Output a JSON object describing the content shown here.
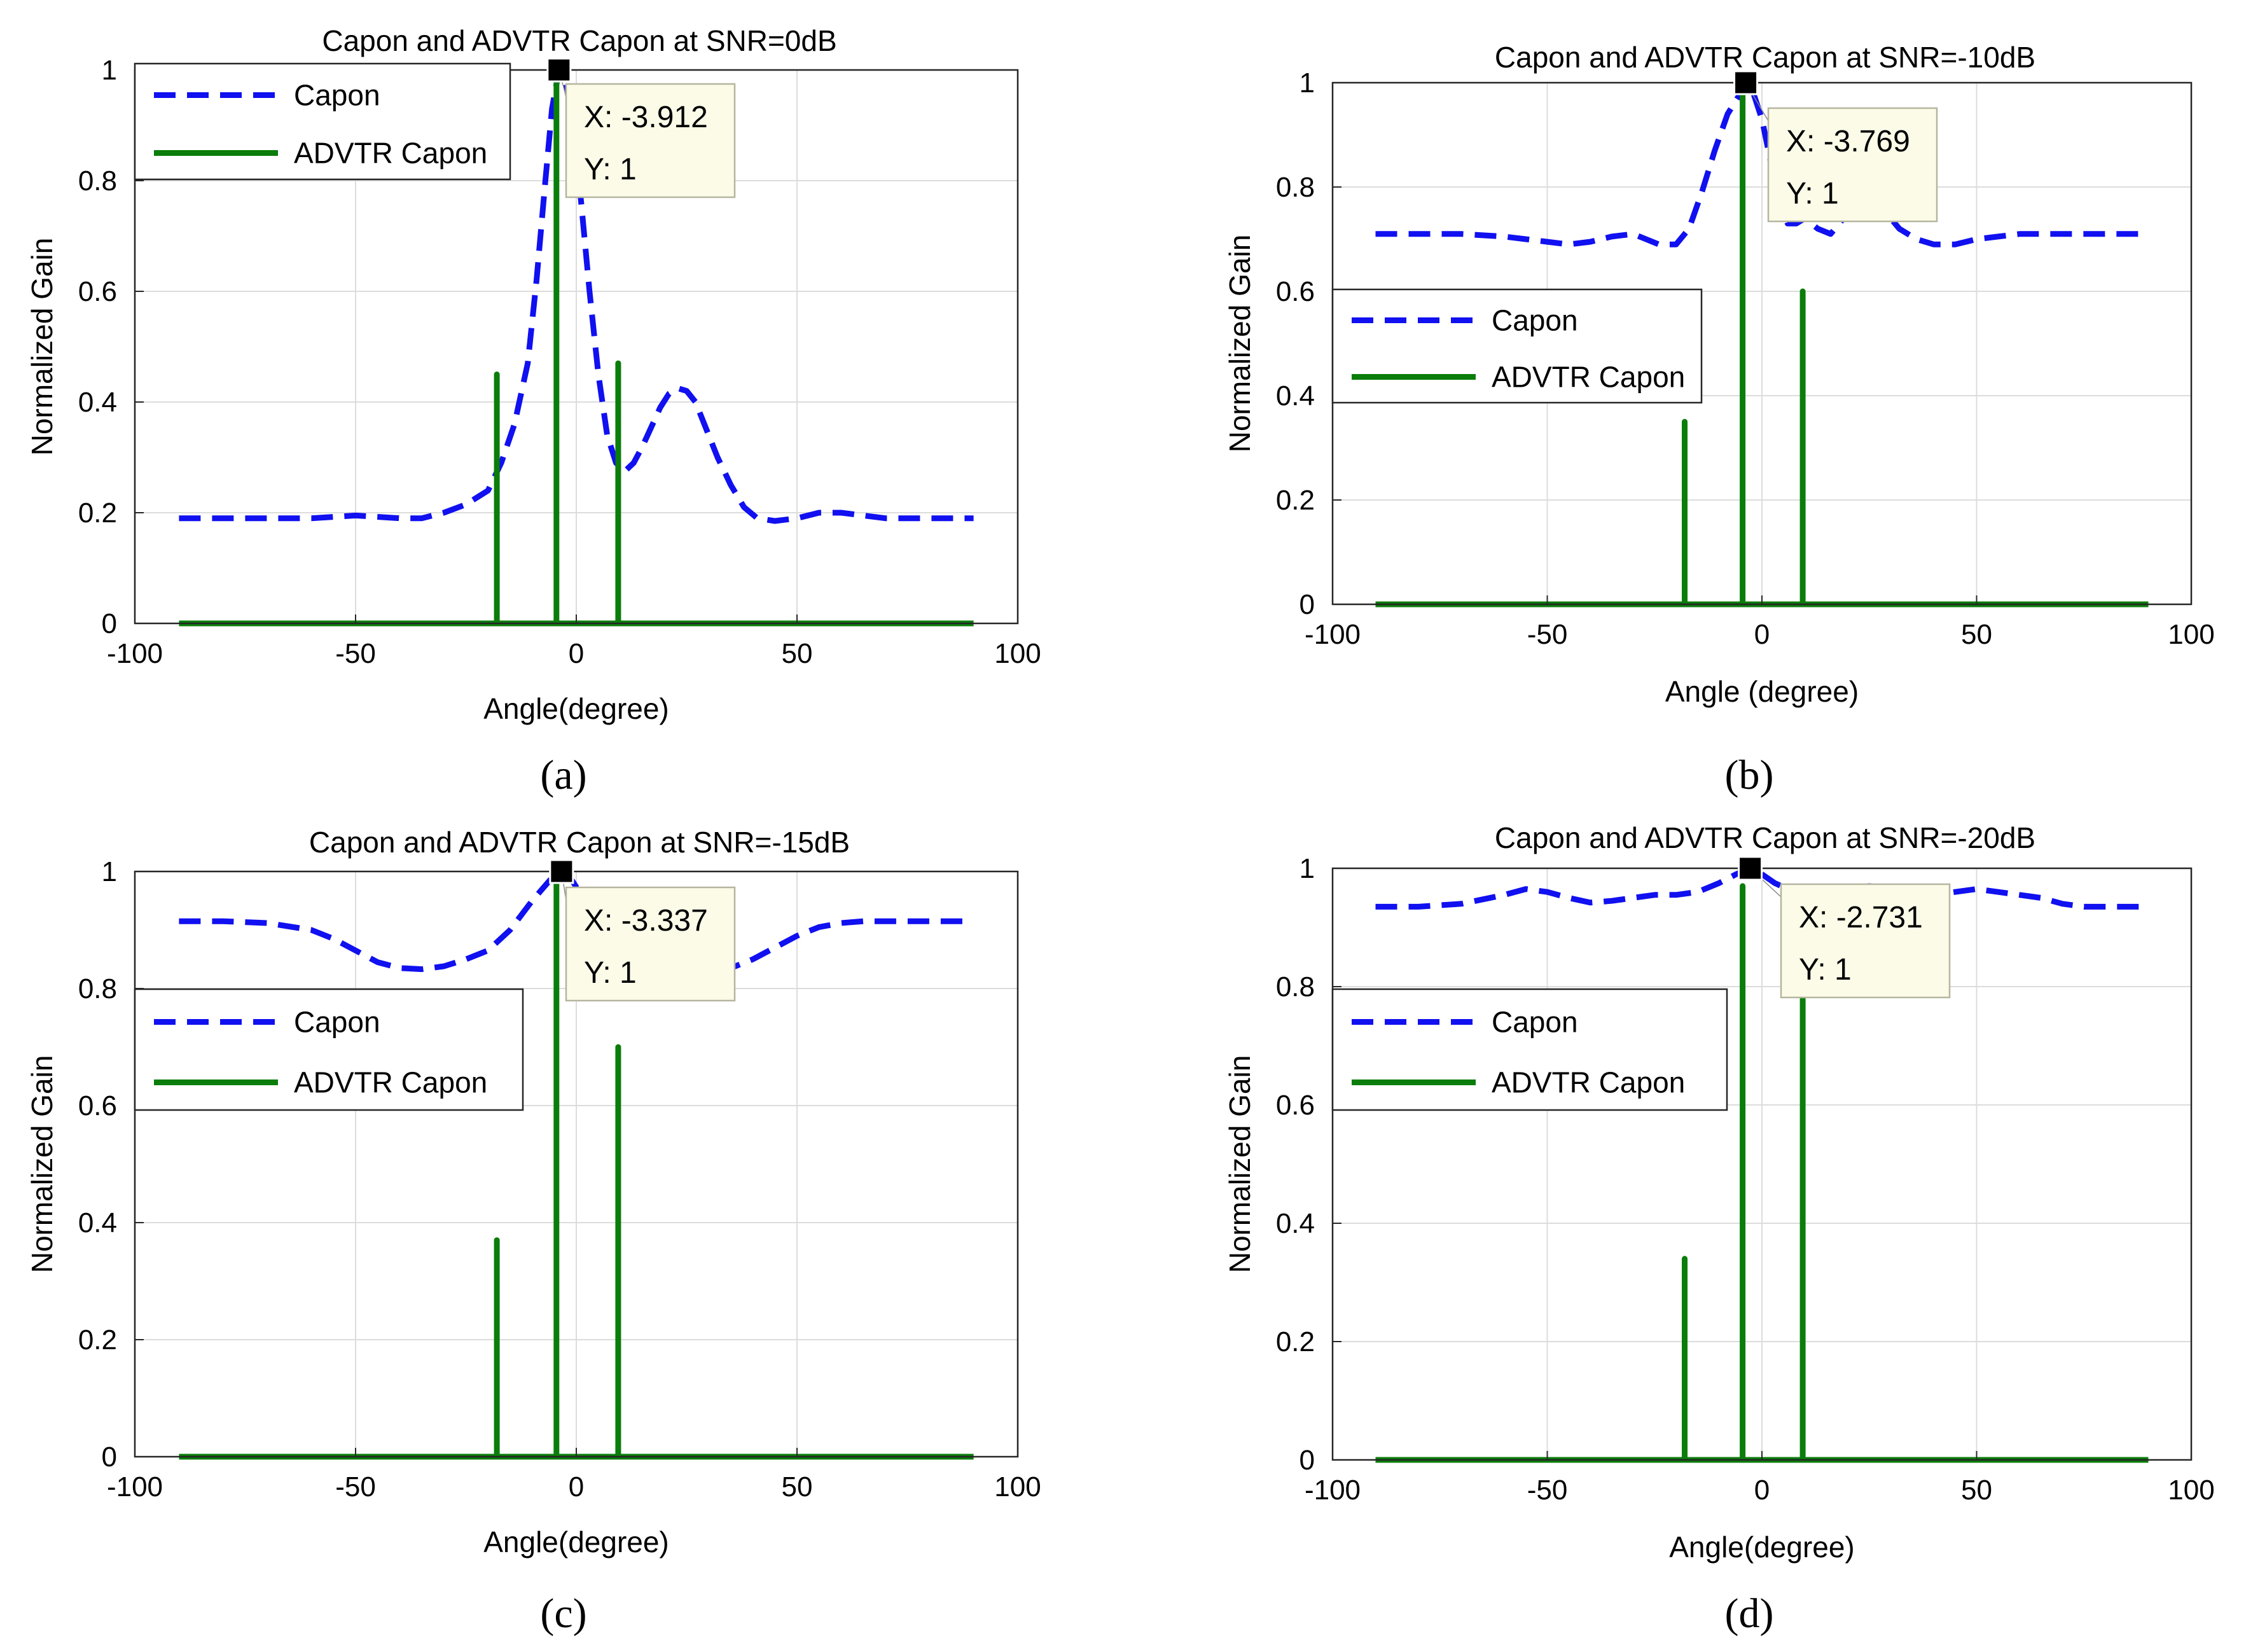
{
  "figure": {
    "background": "#ffffff"
  },
  "colors": {
    "capon": "#1010f0",
    "advtr": "#0a7d0a",
    "grid": "#dcdcdc",
    "axis": "#262626",
    "tip_fill": "#fbfbe8",
    "tip_stroke": "#b5b5a0",
    "marker": "#000000"
  },
  "chart_data": [
    {
      "type": "line",
      "subplot_label": "(a)",
      "title": "Capon  and ADVTR Capon at SNR=0dB",
      "xlabel": "Angle(degree)",
      "ylabel": "Normalized Gain",
      "xlim": [
        -100,
        100
      ],
      "ylim": [
        0,
        1
      ],
      "xticks": [
        -100,
        -50,
        0,
        50,
        100
      ],
      "yticks": [
        0,
        0.2,
        0.4,
        0.6,
        0.8,
        1
      ],
      "grid": true,
      "legend": {
        "position": "top-left",
        "entries": [
          "Capon",
          "ADVTR Capon"
        ]
      },
      "series": [
        {
          "name": "Capon",
          "style": "dashed",
          "x": [
            -90,
            -80,
            -70,
            -60,
            -50,
            -40,
            -35,
            -30,
            -25,
            -20,
            -17,
            -14,
            -11,
            -9,
            -7,
            -5.5,
            -3.912,
            -2.5,
            -1,
            1,
            3,
            5,
            7,
            9,
            11,
            13,
            15,
            17,
            19,
            21,
            23,
            25,
            27,
            29,
            32,
            35,
            38,
            41,
            45,
            50,
            55,
            60,
            65,
            70,
            75,
            80,
            85,
            90
          ],
          "y": [
            0.19,
            0.19,
            0.19,
            0.19,
            0.195,
            0.19,
            0.19,
            0.2,
            0.215,
            0.24,
            0.29,
            0.36,
            0.47,
            0.62,
            0.8,
            0.93,
            1.0,
            0.98,
            0.92,
            0.77,
            0.6,
            0.45,
            0.34,
            0.29,
            0.275,
            0.29,
            0.32,
            0.355,
            0.39,
            0.415,
            0.425,
            0.42,
            0.4,
            0.36,
            0.3,
            0.25,
            0.21,
            0.19,
            0.185,
            0.19,
            0.2,
            0.2,
            0.195,
            0.19,
            0.19,
            0.19,
            0.19,
            0.19
          ]
        },
        {
          "name": "ADVTR Capon",
          "style": "solid",
          "x": [
            -90,
            -18,
            -18,
            -18,
            -4.5,
            -4.5,
            -4.5,
            9.5,
            9.5,
            9.5,
            90
          ],
          "y": [
            0,
            0,
            0.45,
            0,
            0,
            0.98,
            0,
            0,
            0.47,
            0,
            0
          ]
        }
      ],
      "datatip": {
        "x": -3.912,
        "y": 1,
        "x_text": "X: -3.912",
        "y_text": "Y: 1"
      }
    },
    {
      "type": "line",
      "subplot_label": "(b)",
      "title": "Capon and ADVTR Capon at SNR=-10dB",
      "xlabel": "Angle (degree)",
      "ylabel": "Normalized Gain",
      "xlim": [
        -100,
        100
      ],
      "ylim": [
        0,
        1
      ],
      "xticks": [
        -100,
        -50,
        0,
        50,
        100
      ],
      "yticks": [
        0,
        0.2,
        0.4,
        0.6,
        0.8,
        1
      ],
      "grid": true,
      "legend": {
        "position": "middle-left",
        "entries": [
          "Capon",
          "ADVTR Capon"
        ]
      },
      "series": [
        {
          "name": "Capon",
          "style": "dashed",
          "x": [
            -90,
            -80,
            -70,
            -60,
            -50,
            -45,
            -40,
            -35,
            -30,
            -27,
            -24,
            -20,
            -17,
            -14,
            -11,
            -8,
            -5,
            -3.769,
            -2,
            0,
            2,
            4,
            6,
            8,
            10,
            13,
            16,
            19,
            22,
            25,
            28,
            32,
            36,
            40,
            45,
            50,
            55,
            60,
            70,
            80,
            90
          ],
          "y": [
            0.71,
            0.71,
            0.71,
            0.705,
            0.695,
            0.69,
            0.695,
            0.705,
            0.71,
            0.7,
            0.69,
            0.69,
            0.72,
            0.79,
            0.87,
            0.94,
            0.98,
            1.0,
            0.98,
            0.93,
            0.85,
            0.77,
            0.73,
            0.73,
            0.74,
            0.72,
            0.71,
            0.74,
            0.76,
            0.77,
            0.76,
            0.72,
            0.7,
            0.69,
            0.69,
            0.7,
            0.705,
            0.71,
            0.71,
            0.71,
            0.71
          ]
        },
        {
          "name": "ADVTR Capon",
          "style": "solid",
          "x": [
            -90,
            -18,
            -18,
            -18,
            -4.5,
            -4.5,
            -4.5,
            9.5,
            9.5,
            9.5,
            90
          ],
          "y": [
            0,
            0,
            0.35,
            0,
            0,
            0.98,
            0,
            0,
            0.6,
            0,
            0
          ]
        }
      ],
      "datatip": {
        "x": -3.769,
        "y": 1,
        "x_text": "X: -3.769",
        "y_text": "Y: 1"
      }
    },
    {
      "type": "line",
      "subplot_label": "(c)",
      "title": "Capon and ADVTR Capon at SNR=-15dB",
      "xlabel": "Angle(degree)",
      "ylabel": "Normalized Gain",
      "xlim": [
        -100,
        100
      ],
      "ylim": [
        0,
        1
      ],
      "xticks": [
        -100,
        -50,
        0,
        50,
        100
      ],
      "yticks": [
        0,
        0.2,
        0.4,
        0.6,
        0.8,
        1
      ],
      "grid": true,
      "legend": {
        "position": "middle-left",
        "entries": [
          "Capon",
          "ADVTR Capon"
        ]
      },
      "series": [
        {
          "name": "Capon",
          "style": "dashed",
          "x": [
            -90,
            -80,
            -70,
            -60,
            -55,
            -50,
            -45,
            -40,
            -35,
            -30,
            -25,
            -20,
            -15,
            -10,
            -6,
            -3.337,
            -1,
            2,
            5,
            8,
            12,
            16,
            20,
            25,
            30,
            35,
            40,
            45,
            50,
            55,
            60,
            65,
            70,
            75,
            80,
            85,
            90
          ],
          "y": [
            0.915,
            0.915,
            0.912,
            0.9,
            0.885,
            0.865,
            0.845,
            0.835,
            0.833,
            0.838,
            0.85,
            0.865,
            0.9,
            0.95,
            0.985,
            1.0,
            0.985,
            0.95,
            0.91,
            0.88,
            0.865,
            0.855,
            0.845,
            0.835,
            0.83,
            0.835,
            0.85,
            0.87,
            0.89,
            0.905,
            0.912,
            0.915,
            0.915,
            0.915,
            0.915,
            0.915,
            0.915
          ]
        },
        {
          "name": "ADVTR Capon",
          "style": "solid",
          "x": [
            -90,
            -18,
            -18,
            -18,
            -4.5,
            -4.5,
            -4.5,
            9.5,
            9.5,
            9.5,
            90
          ],
          "y": [
            0,
            0,
            0.37,
            0,
            0,
            0.98,
            0,
            0,
            0.7,
            0,
            0
          ]
        }
      ],
      "datatip": {
        "x": -3.337,
        "y": 1,
        "x_text": "X: -3.337",
        "y_text": "Y: 1"
      }
    },
    {
      "type": "line",
      "subplot_label": "(d)",
      "title": "Capon and ADVTR Capon at SNR=-20dB",
      "xlabel": "Angle(degree)",
      "ylabel": "Normalized Gain",
      "xlim": [
        -100,
        100
      ],
      "ylim": [
        0,
        1
      ],
      "xticks": [
        -100,
        -50,
        0,
        50,
        100
      ],
      "yticks": [
        0,
        0.2,
        0.4,
        0.6,
        0.8,
        1
      ],
      "grid": true,
      "legend": {
        "position": "middle-left",
        "entries": [
          "Capon",
          "ADVTR Capon"
        ]
      },
      "series": [
        {
          "name": "Capon",
          "style": "dashed",
          "x": [
            -90,
            -80,
            -70,
            -60,
            -55,
            -50,
            -45,
            -40,
            -35,
            -30,
            -25,
            -20,
            -15,
            -10,
            -6,
            -2.731,
            0,
            3,
            6,
            9,
            12,
            15,
            20,
            25,
            30,
            35,
            40,
            45,
            50,
            55,
            60,
            65,
            70,
            75,
            80,
            85,
            90
          ],
          "y": [
            0.935,
            0.935,
            0.94,
            0.955,
            0.965,
            0.96,
            0.95,
            0.942,
            0.945,
            0.95,
            0.955,
            0.955,
            0.96,
            0.975,
            0.99,
            1.0,
            0.99,
            0.975,
            0.965,
            0.96,
            0.96,
            0.955,
            0.965,
            0.97,
            0.965,
            0.955,
            0.955,
            0.96,
            0.965,
            0.96,
            0.955,
            0.95,
            0.94,
            0.935,
            0.935,
            0.935,
            0.935
          ]
        },
        {
          "name": "ADVTR Capon",
          "style": "solid",
          "x": [
            -90,
            -18,
            -18,
            -18,
            -4.5,
            -4.5,
            -4.5,
            9.5,
            9.5,
            9.5,
            90
          ],
          "y": [
            0,
            0,
            0.34,
            0,
            0,
            0.97,
            0,
            0,
            0.78,
            0,
            0
          ]
        }
      ],
      "datatip": {
        "x": -2.731,
        "y": 1,
        "x_text": "X: -2.731",
        "y_text": "Y: 1"
      }
    }
  ]
}
